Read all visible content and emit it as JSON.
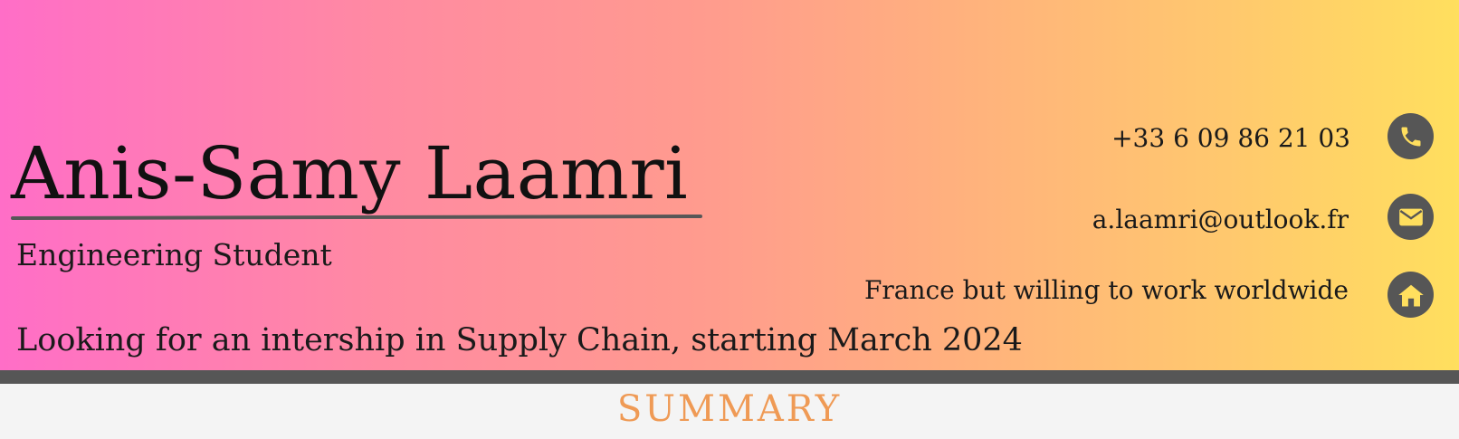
{
  "header": {
    "name": "Anis-Samy Laamri",
    "role": "Engineering Student",
    "objective": "Looking for an intership in Supply Chain, starting March 2024"
  },
  "contact": {
    "phone": "+33 6 09 86 21 03",
    "email": "a.laamri@outlook.fr",
    "location": "France but willing to work worldwide"
  },
  "icons": [
    "phone-icon",
    "envelope-icon",
    "home-icon"
  ],
  "sections": {
    "summary_title": "SUMMARY"
  },
  "colors": {
    "gradient_start": "#ff6ec7",
    "gradient_end": "#ffdf5e",
    "dark_band": "#565656",
    "section_title": "#ef9a55"
  }
}
